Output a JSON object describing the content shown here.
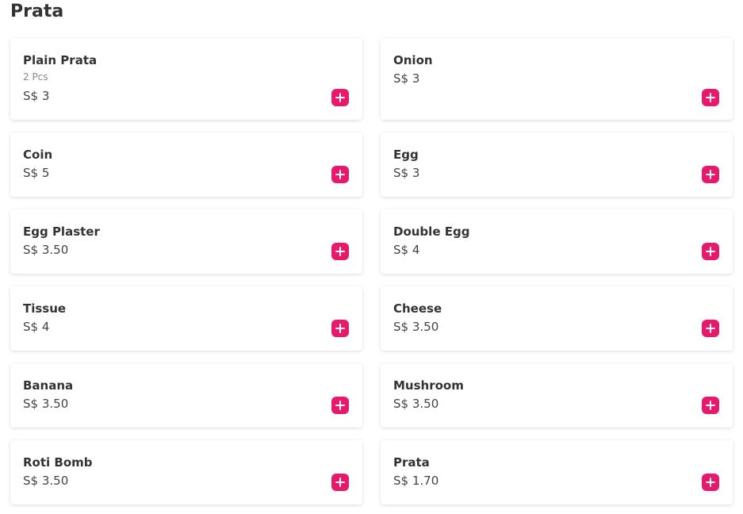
{
  "section_title": "Prata",
  "accent_color": "#e8196b",
  "items": [
    {
      "name": "Plain Prata",
      "desc": "2 Pcs",
      "price": "S$ 3"
    },
    {
      "name": "Onion",
      "desc": " ",
      "price": "S$ 3"
    },
    {
      "name": "Coin",
      "price": "S$ 5"
    },
    {
      "name": "Egg",
      "price": "S$ 3"
    },
    {
      "name": "Egg Plaster",
      "price": "S$ 3.50"
    },
    {
      "name": "Double Egg",
      "price": "S$ 4"
    },
    {
      "name": "Tissue",
      "price": "S$ 4"
    },
    {
      "name": "Cheese",
      "price": "S$ 3.50"
    },
    {
      "name": "Banana",
      "price": "S$ 3.50"
    },
    {
      "name": "Mushroom",
      "price": "S$ 3.50"
    },
    {
      "name": "Roti Bomb",
      "price": "S$ 3.50"
    },
    {
      "name": "Prata",
      "price": "S$ 1.70"
    }
  ]
}
